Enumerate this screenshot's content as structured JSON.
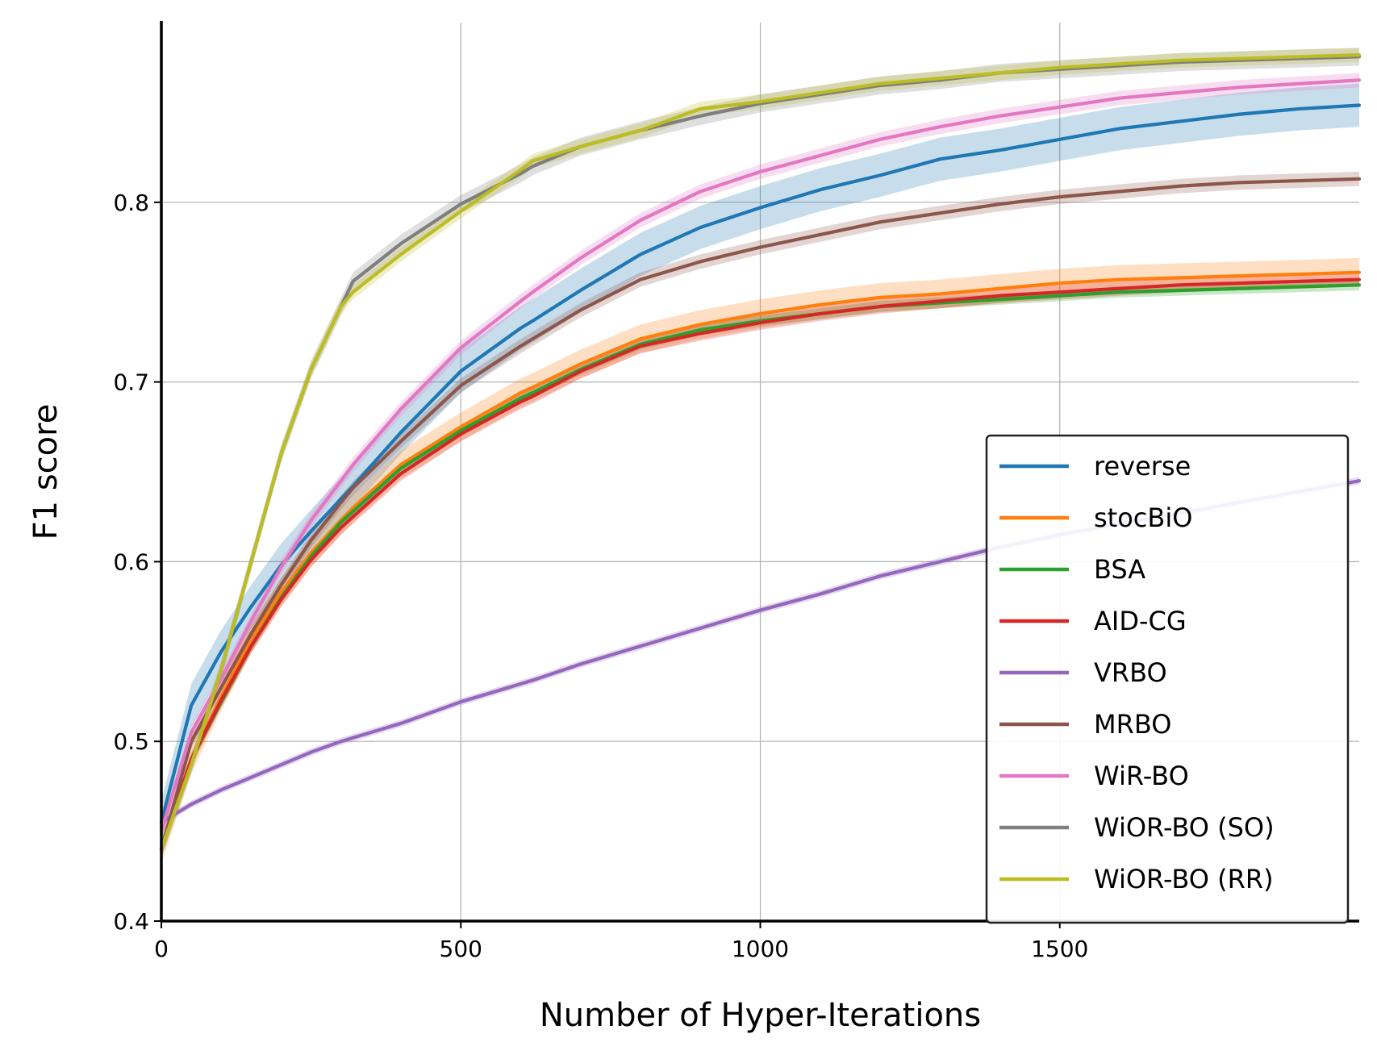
{
  "chart_data": {
    "type": "line",
    "title": "",
    "xlabel": "Number of Hyper-Iterations",
    "ylabel": "F1 score",
    "xlim": [
      0,
      2000
    ],
    "ylim": [
      0.4,
      0.9
    ],
    "xticks": [
      0,
      500,
      1000,
      1500
    ],
    "xtick_labels": [
      "0",
      "500",
      "1000",
      "1500"
    ],
    "yticks": [
      0.4,
      0.5,
      0.6,
      0.7,
      0.8
    ],
    "ytick_labels": [
      "0.4",
      "0.5",
      "0.6",
      "0.7",
      "0.8"
    ],
    "grid": true,
    "legend_position": "lower-right",
    "x": [
      0,
      50,
      100,
      150,
      200,
      250,
      300,
      320,
      400,
      500,
      600,
      620,
      700,
      800,
      900,
      1000,
      1100,
      1200,
      1300,
      1400,
      1500,
      1600,
      1700,
      1800,
      1900,
      2000
    ],
    "series": [
      {
        "name": "reverse",
        "color": "#1f77b4",
        "band": 0.012,
        "values": [
          0.455,
          0.52,
          0.55,
          0.575,
          0.598,
          0.617,
          0.635,
          0.642,
          0.672,
          0.706,
          0.73,
          0.734,
          0.751,
          0.771,
          0.786,
          0.797,
          0.807,
          0.815,
          0.824,
          0.829,
          0.835,
          0.841,
          0.845,
          0.849,
          0.852,
          0.854
        ]
      },
      {
        "name": "stocBiO",
        "color": "#ff7f0e",
        "band": 0.008,
        "values": [
          0.44,
          0.49,
          0.525,
          0.557,
          0.583,
          0.605,
          0.623,
          0.63,
          0.654,
          0.675,
          0.694,
          0.697,
          0.71,
          0.724,
          0.732,
          0.738,
          0.743,
          0.747,
          0.749,
          0.752,
          0.755,
          0.757,
          0.758,
          0.759,
          0.76,
          0.761
        ]
      },
      {
        "name": "BSA",
        "color": "#2ca02c",
        "band": 0.003,
        "values": [
          0.44,
          0.49,
          0.522,
          0.553,
          0.58,
          0.603,
          0.622,
          0.628,
          0.652,
          0.673,
          0.691,
          0.694,
          0.707,
          0.721,
          0.729,
          0.734,
          0.738,
          0.742,
          0.744,
          0.746,
          0.748,
          0.75,
          0.751,
          0.752,
          0.753,
          0.754
        ]
      },
      {
        "name": "AID-CG",
        "color": "#d62728",
        "band": 0.004,
        "values": [
          0.44,
          0.49,
          0.523,
          0.553,
          0.579,
          0.601,
          0.619,
          0.625,
          0.649,
          0.671,
          0.689,
          0.692,
          0.706,
          0.72,
          0.727,
          0.733,
          0.738,
          0.742,
          0.745,
          0.748,
          0.75,
          0.752,
          0.754,
          0.755,
          0.756,
          0.757
        ]
      },
      {
        "name": "VRBO",
        "color": "#9467bd",
        "band": 0.002,
        "values": [
          0.455,
          0.465,
          0.473,
          0.48,
          0.487,
          0.494,
          0.5,
          0.502,
          0.51,
          0.522,
          0.532,
          0.534,
          0.543,
          0.553,
          0.563,
          0.573,
          0.582,
          0.592,
          0.6,
          0.608,
          0.615,
          0.621,
          0.627,
          0.633,
          0.639,
          0.645
        ]
      },
      {
        "name": "MRBO",
        "color": "#8c564b",
        "band": 0.004,
        "values": [
          0.44,
          0.5,
          0.53,
          0.56,
          0.587,
          0.612,
          0.633,
          0.641,
          0.667,
          0.698,
          0.72,
          0.724,
          0.74,
          0.757,
          0.767,
          0.775,
          0.782,
          0.789,
          0.794,
          0.799,
          0.803,
          0.806,
          0.809,
          0.811,
          0.812,
          0.813
        ]
      },
      {
        "name": "WiR-BO",
        "color": "#e377c2",
        "band": 0.004,
        "values": [
          0.45,
          0.505,
          0.535,
          0.567,
          0.597,
          0.623,
          0.645,
          0.654,
          0.685,
          0.719,
          0.745,
          0.75,
          0.769,
          0.79,
          0.806,
          0.817,
          0.826,
          0.835,
          0.842,
          0.848,
          0.853,
          0.858,
          0.861,
          0.864,
          0.866,
          0.868
        ]
      },
      {
        "name": "WiOR-BO (SO)",
        "color": "#7f7f7f",
        "band": 0.005,
        "values": [
          0.44,
          0.487,
          0.54,
          0.6,
          0.66,
          0.707,
          0.742,
          0.756,
          0.777,
          0.799,
          0.816,
          0.82,
          0.831,
          0.84,
          0.848,
          0.855,
          0.86,
          0.865,
          0.868,
          0.872,
          0.874,
          0.876,
          0.878,
          0.879,
          0.88,
          0.881
        ]
      },
      {
        "name": "WiOR-BO (RR)",
        "color": "#bcbd22",
        "band": 0.004,
        "values": [
          0.44,
          0.487,
          0.54,
          0.6,
          0.66,
          0.707,
          0.742,
          0.75,
          0.771,
          0.795,
          0.818,
          0.823,
          0.831,
          0.84,
          0.852,
          0.856,
          0.861,
          0.866,
          0.869,
          0.872,
          0.875,
          0.877,
          0.879,
          0.88,
          0.881,
          0.882
        ]
      }
    ]
  }
}
